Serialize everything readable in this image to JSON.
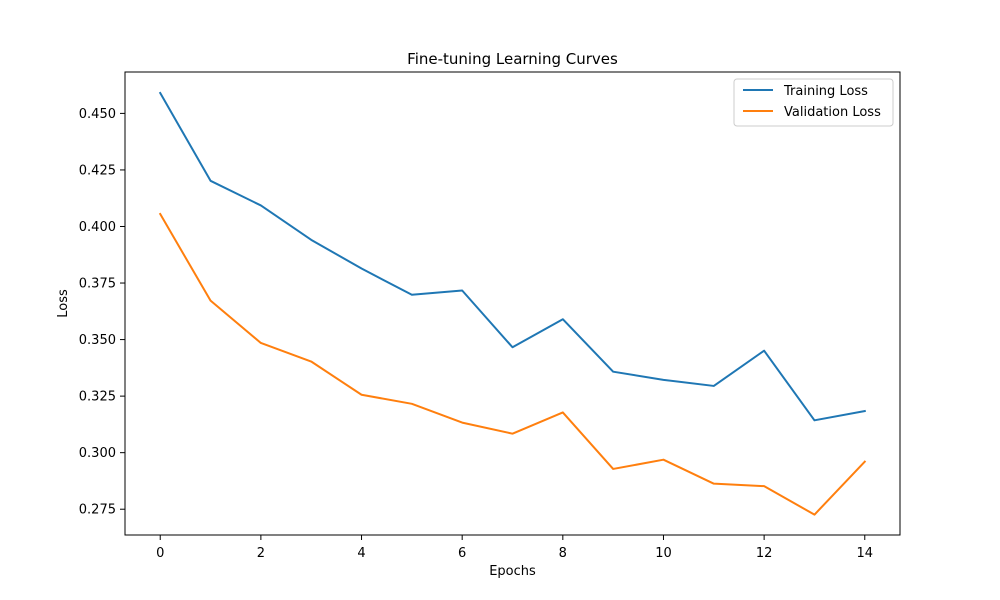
{
  "chart_data": {
    "type": "line",
    "title": "Fine-tuning Learning Curves",
    "xlabel": "Epochs",
    "ylabel": "Loss",
    "x": [
      0,
      1,
      2,
      3,
      4,
      5,
      6,
      7,
      8,
      9,
      10,
      11,
      12,
      13,
      14
    ],
    "xlim": [
      -0.7,
      14.7
    ],
    "ylim": [
      0.2636,
      0.4683
    ],
    "xticks": [
      0,
      2,
      4,
      6,
      8,
      10,
      12,
      14
    ],
    "yticks": [
      0.275,
      0.3,
      0.325,
      0.35,
      0.375,
      0.4,
      0.425,
      0.45
    ],
    "xtick_labels": [
      "0",
      "2",
      "4",
      "6",
      "8",
      "10",
      "12",
      "14"
    ],
    "ytick_labels": [
      "0.275",
      "0.300",
      "0.325",
      "0.350",
      "0.375",
      "0.400",
      "0.425",
      "0.450"
    ],
    "grid": false,
    "legend_position": "upper right",
    "series": [
      {
        "name": "Training Loss",
        "color": "#1f77b4",
        "values": [
          0.459,
          0.4202,
          0.4093,
          0.3941,
          0.3814,
          0.3698,
          0.3717,
          0.3466,
          0.359,
          0.3358,
          0.3322,
          0.3295,
          0.3451,
          0.3143,
          0.3184
        ]
      },
      {
        "name": "Validation Loss",
        "color": "#ff7f0e",
        "values": [
          0.4055,
          0.3672,
          0.3485,
          0.3403,
          0.3256,
          0.3216,
          0.3133,
          0.3084,
          0.3178,
          0.2928,
          0.2969,
          0.2863,
          0.2852,
          0.2726,
          0.296
        ]
      }
    ]
  }
}
